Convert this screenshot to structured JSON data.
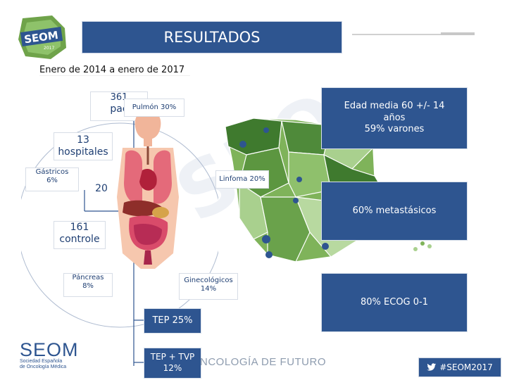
{
  "header": {
    "title": "RESULTADOS",
    "subtitle": "Enero de 2014 a enero de 2017",
    "logo_text": "SEOM",
    "logo_year": "2017"
  },
  "left_nodes": {
    "patients_top": "361",
    "patients_bottom": "pac",
    "hospitals": "13\nhospitales",
    "gastric": "Gástricos\n6%",
    "twenty": "20",
    "controls": "161\ncontrole",
    "pancreas": "Páncreas\n8%"
  },
  "organ_labels": {
    "lung": "Pulmón 30%",
    "lymphoma": "Linfoma 20%",
    "gyneco": "Ginecológicos\n14%"
  },
  "bottom_stats": {
    "tep": "TEP 25%",
    "tep_tvp": "TEP + TVP\n12%"
  },
  "right_stats": {
    "age": "Edad media 60 +/- 14\naños\n59% varones",
    "metastatic": "60% metastásicos",
    "ecog": "80% ECOG 0-1"
  },
  "footer": {
    "seom": "SEOM",
    "seom_sub_1": "Sociedad Española",
    "seom_sub_2": "de Oncología Médica",
    "onco_text": "NCOLOGÍA DE FUTURO",
    "hashtag": "#SEOM2017",
    "twitter_icon": "twitter-bird-icon"
  },
  "colors": {
    "primary_blue": "#2e5590",
    "map_green_dark": "#3f7a2e",
    "map_green_light": "#a9d08e"
  }
}
